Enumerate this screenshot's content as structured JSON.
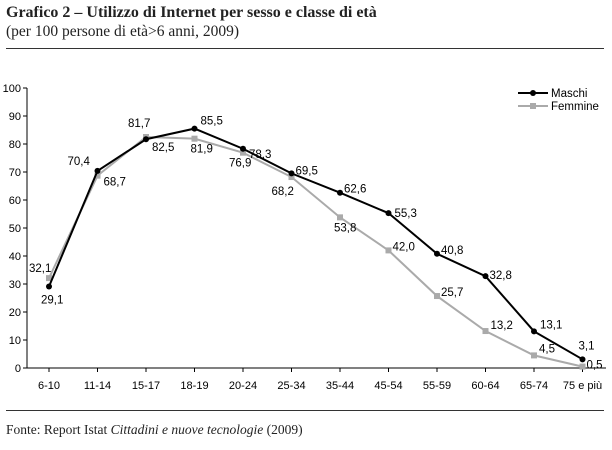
{
  "header": {
    "title": "Grafico 2 – Utilizzo di Internet per sesso e classe di età",
    "subtitle": "(per 100 persone di età>6 anni, 2009)"
  },
  "source": {
    "prefix": "Fonte: Report Istat ",
    "italic": "Cittadini e nuove tecnologie",
    "suffix": " (2009)"
  },
  "chart_data": {
    "type": "line",
    "title": "Grafico 2 – Utilizzo di Internet per sesso e classe di età",
    "subtitle": "(per 100 persone di età>6 anni, 2009)",
    "categories": [
      "6-10",
      "11-14",
      "15-17",
      "18-19",
      "20-24",
      "25-34",
      "35-44",
      "45-54",
      "55-59",
      "60-64",
      "65-74",
      "75 e più"
    ],
    "series": [
      {
        "name": "Maschi",
        "color": "#000000",
        "marker": "circle",
        "values": [
          29.1,
          70.4,
          81.7,
          85.5,
          78.3,
          69.5,
          62.6,
          55.3,
          40.8,
          32.8,
          13.1,
          3.1
        ],
        "labels": [
          "29,1",
          "70,4",
          "81,7",
          "85,5",
          "78,3",
          "69,5",
          "62,6",
          "55,3",
          "40,8",
          "32,8",
          "13,1",
          "3,1"
        ]
      },
      {
        "name": "Femmine",
        "color": "#aaaaaa",
        "marker": "square",
        "values": [
          32.1,
          68.7,
          82.5,
          81.9,
          76.9,
          68.2,
          53.8,
          42.0,
          25.7,
          13.2,
          4.5,
          0.5
        ],
        "labels": [
          "32,1",
          "68,7",
          "82,5",
          "81,9",
          "76,9",
          "68,2",
          "53,8",
          "42,0",
          "25,7",
          "13,2",
          "4,5",
          "0,5"
        ]
      }
    ],
    "yticks": [
      0,
      10,
      20,
      30,
      40,
      50,
      60,
      70,
      80,
      90,
      100
    ],
    "ylim": [
      0,
      100
    ],
    "grid": false,
    "legend": "top-right",
    "xlabel": "",
    "ylabel": ""
  }
}
